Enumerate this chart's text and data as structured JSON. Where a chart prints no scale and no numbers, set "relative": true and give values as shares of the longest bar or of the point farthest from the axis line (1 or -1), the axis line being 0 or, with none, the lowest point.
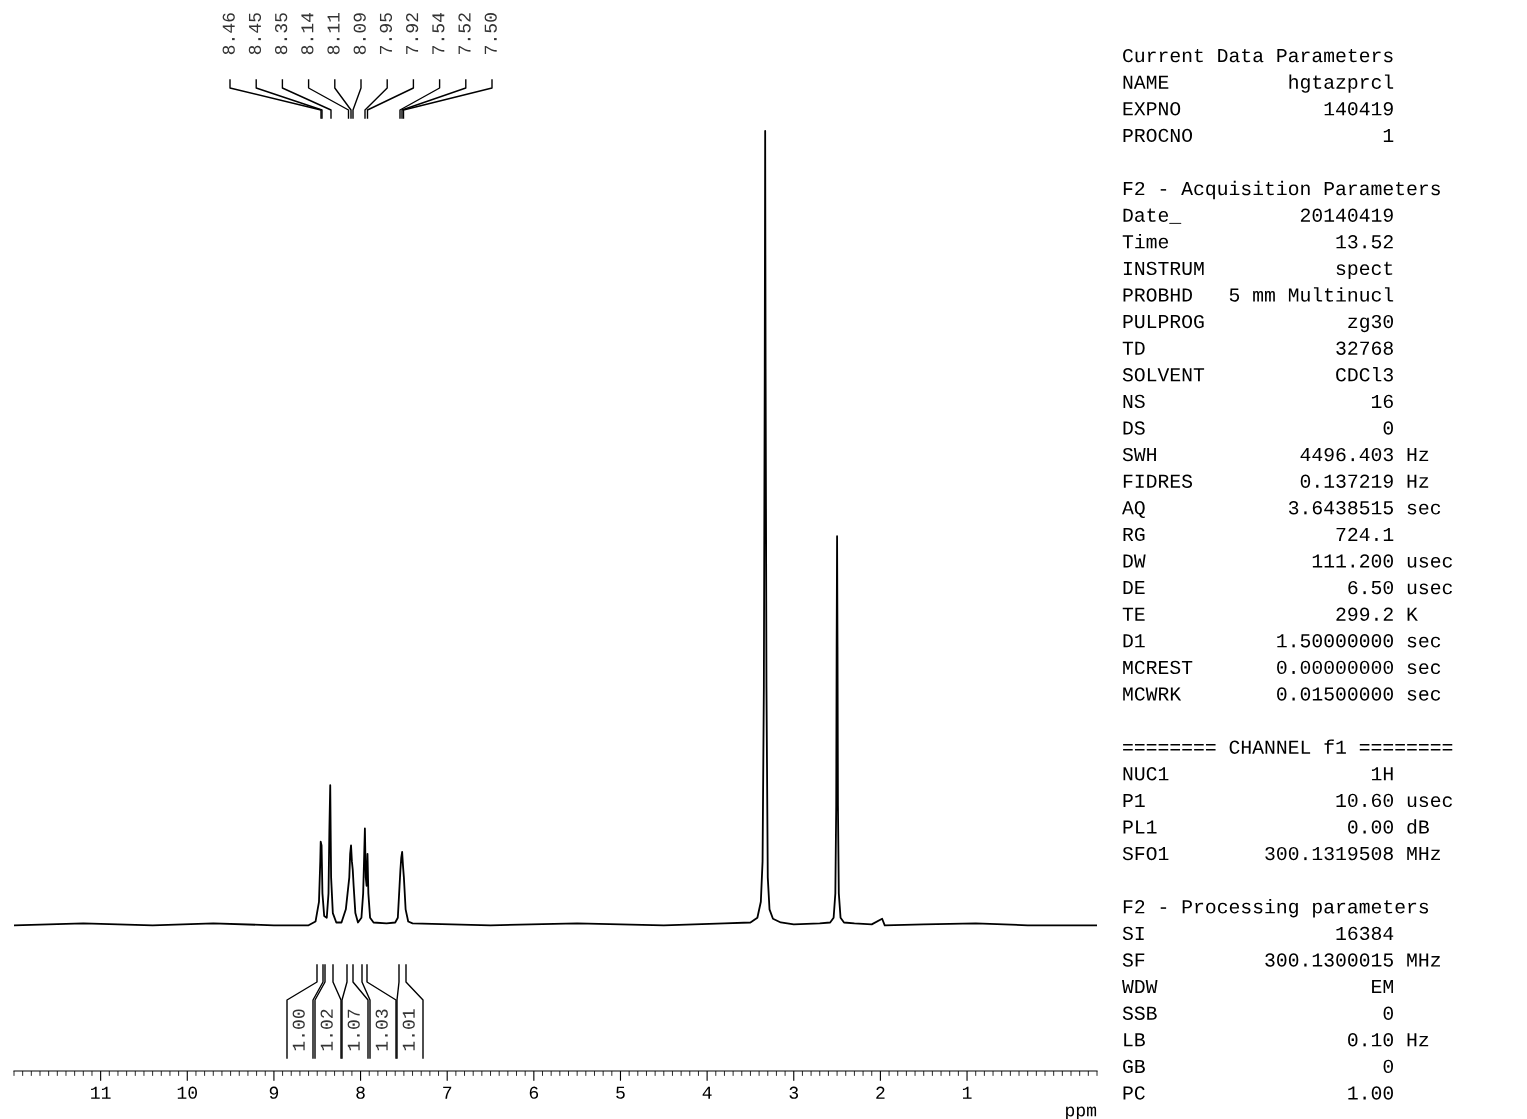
{
  "chart_data": {
    "type": "line",
    "relative": true,
    "xlabel": "ppm",
    "xlim": [
      12.0,
      -0.5
    ],
    "xticks": [
      11,
      10,
      9,
      8,
      7,
      6,
      5,
      4,
      3,
      2,
      1
    ],
    "grid": false,
    "legend": false,
    "marker": "none",
    "line_style": "solid",
    "series": [
      {
        "color": "#000000",
        "x": [
          12.0,
          11.2,
          10.4,
          9.7,
          9.0,
          8.6,
          8.52,
          8.48,
          8.465,
          8.46,
          8.45,
          8.44,
          8.42,
          8.39,
          8.37,
          8.36,
          8.35,
          8.34,
          8.32,
          8.28,
          8.22,
          8.17,
          8.15,
          8.13,
          8.12,
          8.11,
          8.1,
          8.09,
          8.08,
          8.06,
          8.03,
          7.99,
          7.97,
          7.96,
          7.95,
          7.94,
          7.93,
          7.92,
          7.91,
          7.89,
          7.85,
          7.7,
          7.6,
          7.57,
          7.55,
          7.54,
          7.53,
          7.52,
          7.51,
          7.5,
          7.48,
          7.45,
          7.4,
          6.5,
          5.5,
          4.5,
          3.8,
          3.5,
          3.42,
          3.38,
          3.36,
          3.345,
          3.335,
          3.33,
          3.325,
          3.315,
          3.3,
          3.28,
          3.24,
          3.15,
          3.0,
          2.7,
          2.58,
          2.54,
          2.52,
          2.51,
          2.505,
          2.5,
          2.495,
          2.49,
          2.48,
          2.46,
          2.42,
          2.3,
          2.1,
          1.98,
          1.95,
          1.5,
          0.9,
          0.3,
          -0.5
        ],
        "values": [
          0.155,
          0.157,
          0.155,
          0.157,
          0.155,
          0.155,
          0.159,
          0.18,
          0.223,
          0.244,
          0.24,
          0.189,
          0.165,
          0.163,
          0.189,
          0.256,
          0.304,
          0.206,
          0.168,
          0.158,
          0.158,
          0.172,
          0.189,
          0.206,
          0.231,
          0.24,
          0.223,
          0.214,
          0.197,
          0.168,
          0.158,
          0.163,
          0.189,
          0.223,
          0.258,
          0.206,
          0.197,
          0.231,
          0.189,
          0.163,
          0.158,
          0.157,
          0.158,
          0.163,
          0.197,
          0.214,
          0.227,
          0.233,
          0.218,
          0.206,
          0.172,
          0.159,
          0.157,
          0.155,
          0.157,
          0.155,
          0.157,
          0.158,
          0.163,
          0.18,
          0.223,
          0.409,
          0.747,
          1.0,
          0.747,
          0.409,
          0.206,
          0.172,
          0.162,
          0.158,
          0.156,
          0.157,
          0.158,
          0.163,
          0.189,
          0.282,
          0.451,
          0.569,
          0.451,
          0.282,
          0.189,
          0.163,
          0.158,
          0.157,
          0.156,
          0.162,
          0.155,
          0.156,
          0.157,
          0.155,
          0.155
        ]
      }
    ],
    "annotations": [
      "8.46",
      "8.45",
      "8.35",
      "8.14",
      "8.11",
      "8.09",
      "7.95",
      "7.92",
      "7.54",
      "7.52",
      "7.50",
      "1.00",
      "1.02",
      "1.07",
      "1.03",
      "1.01",
      "Current Data Parameters",
      "NAME          hgtazprcl",
      "EXPNO            140419",
      "PROCNO                1",
      "F2 - Acquisition Parameters",
      "Date_          20140419",
      "Time              13.52",
      "INSTRUM           spect",
      "PROBHD   5 mm Multinucl",
      "PULPROG            zg30",
      "TD                32768",
      "SOLVENT           CDCl3",
      "NS                   16",
      "DS                    0",
      "SWH            4496.403 Hz",
      "FIDRES         0.137219 Hz",
      "AQ            3.6438515 sec",
      "RG                724.1",
      "DW              111.200 usec",
      "DE                 6.50 usec",
      "TE                299.2 K",
      "D1           1.50000000 sec",
      "MCREST       0.00000000 sec",
      "MCWRK        0.01500000 sec",
      "======== CHANNEL f1 ========",
      "NUC1                 1H",
      "P1                10.60 usec",
      "PL1                0.00 dB",
      "SFO1        300.1319508 MHz",
      "F2 - Processing parameters",
      "SI                16384",
      "SF          300.1300015 MHz",
      "WDW                  EM",
      "SSB                   0",
      "LB                 0.10 Hz",
      "GB                    0",
      "PC                 1.00"
    ]
  }
}
